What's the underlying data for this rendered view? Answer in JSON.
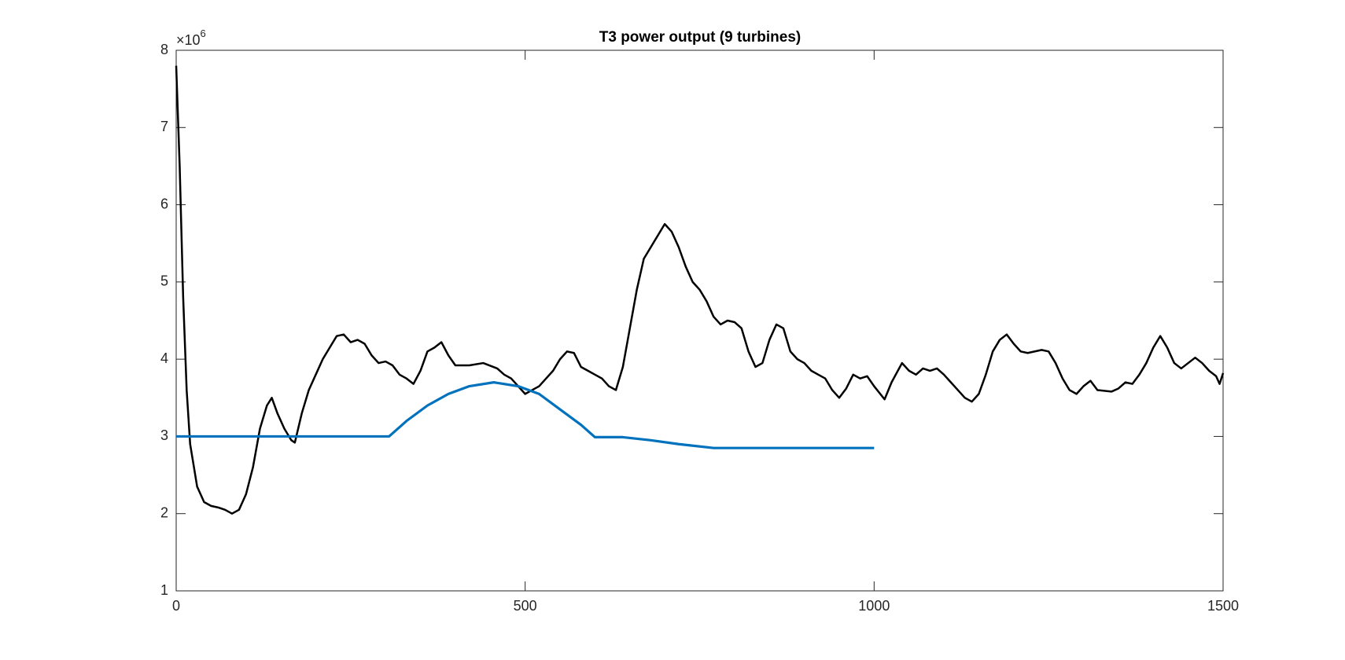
{
  "chart_data": {
    "type": "line",
    "title": "T3 power output (9 turbines)",
    "y_exponent_base": "×10",
    "y_exponent_power": "6",
    "xlim": [
      0,
      1500
    ],
    "xticks": [
      0,
      500,
      1000,
      1500
    ],
    "ylim": [
      1,
      8
    ],
    "yticks": [
      1,
      2,
      3,
      4,
      5,
      6,
      7,
      8
    ],
    "box": true,
    "series": [
      {
        "color": "#000000",
        "x": [
          0,
          5,
          10,
          15,
          20,
          30,
          40,
          50,
          60,
          70,
          80,
          90,
          100,
          110,
          120,
          130,
          137,
          145,
          155,
          165,
          170,
          180,
          190,
          200,
          210,
          220,
          230,
          240,
          250,
          260,
          270,
          280,
          290,
          300,
          310,
          320,
          330,
          340,
          350,
          360,
          370,
          380,
          390,
          400,
          420,
          440,
          460,
          470,
          480,
          490,
          500,
          510,
          520,
          530,
          540,
          550,
          560,
          570,
          580,
          590,
          600,
          610,
          620,
          630,
          640,
          650,
          660,
          670,
          680,
          690,
          700,
          710,
          720,
          730,
          740,
          750,
          760,
          770,
          780,
          790,
          800,
          810,
          820,
          830,
          840,
          850,
          860,
          870,
          880,
          890,
          900,
          910,
          920,
          930,
          940,
          950,
          960,
          970,
          980,
          990,
          1000,
          1015,
          1025,
          1040,
          1050,
          1060,
          1070,
          1080,
          1090,
          1100,
          1110,
          1120,
          1130,
          1140,
          1150,
          1160,
          1170,
          1180,
          1190,
          1200,
          1210,
          1220,
          1240,
          1250,
          1260,
          1270,
          1280,
          1290,
          1300,
          1310,
          1320,
          1340,
          1350,
          1360,
          1370,
          1380,
          1390,
          1400,
          1410,
          1420,
          1430,
          1440,
          1450,
          1460,
          1470,
          1480,
          1490,
          1495,
          1500
        ],
        "values": [
          7.8,
          6.5,
          4.8,
          3.6,
          2.9,
          2.35,
          2.15,
          2.1,
          2.08,
          2.05,
          2.0,
          2.05,
          2.25,
          2.6,
          3.1,
          3.4,
          3.5,
          3.3,
          3.1,
          2.95,
          2.92,
          3.3,
          3.6,
          3.8,
          4.0,
          4.15,
          4.3,
          4.32,
          4.22,
          4.25,
          4.2,
          4.05,
          3.95,
          3.97,
          3.92,
          3.8,
          3.75,
          3.68,
          3.85,
          4.1,
          4.15,
          4.22,
          4.05,
          3.92,
          3.92,
          3.95,
          3.88,
          3.8,
          3.75,
          3.65,
          3.55,
          3.6,
          3.65,
          3.75,
          3.85,
          4.0,
          4.1,
          4.08,
          3.9,
          3.85,
          3.8,
          3.75,
          3.65,
          3.6,
          3.9,
          4.4,
          4.9,
          5.3,
          5.45,
          5.6,
          5.75,
          5.65,
          5.45,
          5.2,
          5.0,
          4.9,
          4.75,
          4.55,
          4.45,
          4.5,
          4.48,
          4.4,
          4.1,
          3.9,
          3.95,
          4.25,
          4.45,
          4.4,
          4.1,
          4.0,
          3.95,
          3.85,
          3.8,
          3.75,
          3.6,
          3.5,
          3.62,
          3.8,
          3.75,
          3.78,
          3.65,
          3.48,
          3.7,
          3.95,
          3.85,
          3.8,
          3.88,
          3.85,
          3.88,
          3.8,
          3.7,
          3.6,
          3.5,
          3.45,
          3.55,
          3.8,
          4.1,
          4.25,
          4.32,
          4.2,
          4.1,
          4.08,
          4.12,
          4.1,
          3.95,
          3.75,
          3.6,
          3.55,
          3.65,
          3.72,
          3.6,
          3.58,
          3.62,
          3.7,
          3.68,
          3.8,
          3.95,
          4.15,
          4.3,
          4.15,
          3.95,
          3.88,
          3.95,
          4.02,
          3.95,
          3.85,
          3.78,
          3.68,
          3.82
        ]
      },
      {
        "color": "#0072bd",
        "x": [
          0,
          300,
          305,
          330,
          360,
          390,
          420,
          455,
          490,
          520,
          550,
          580,
          600,
          640,
          680,
          720,
          770,
          1000
        ],
        "values": [
          3.0,
          3.0,
          3.0,
          3.2,
          3.4,
          3.55,
          3.65,
          3.7,
          3.65,
          3.55,
          3.35,
          3.15,
          2.99,
          2.99,
          2.95,
          2.9,
          2.85,
          2.85
        ]
      }
    ]
  }
}
